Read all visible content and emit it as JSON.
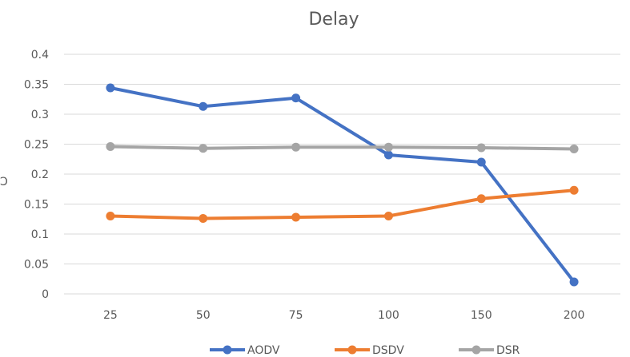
{
  "chart_data": {
    "type": "line",
    "title": "Delay",
    "xlabel": "",
    "ylabel": "",
    "categories": [
      "25",
      "50",
      "75",
      "100",
      "150",
      "200"
    ],
    "ylim": [
      0,
      0.4
    ],
    "yticks": [
      "0",
      "0.05",
      "0.1",
      "0.15",
      "0.2",
      "0.25",
      "0.3",
      "0.35",
      "0.4"
    ],
    "grid": true,
    "legend_position": "bottom",
    "series": [
      {
        "name": "AODV",
        "color": "#4472C4",
        "values": [
          0.344,
          0.313,
          0.327,
          0.232,
          0.22,
          0.02
        ]
      },
      {
        "name": "DSDV",
        "color": "#ED7D31",
        "values": [
          0.13,
          0.126,
          0.128,
          0.13,
          0.159,
          0.173
        ]
      },
      {
        "name": "DSR",
        "color": "#A5A5A5",
        "values": [
          0.246,
          0.243,
          0.245,
          0.245,
          0.244,
          0.242
        ]
      }
    ]
  }
}
